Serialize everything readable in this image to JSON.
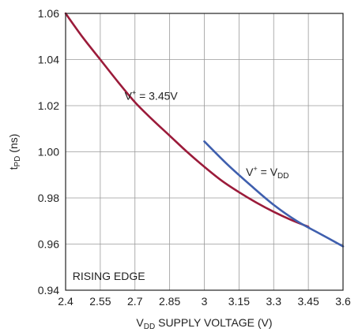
{
  "chart_data": {
    "type": "line",
    "xlabel": {
      "prefix": "V",
      "sub": "DD",
      "rest": " SUPPLY VOLTAGE (V)"
    },
    "ylabel": {
      "prefix": "t",
      "sub": "PD",
      "rest": " (ns)"
    },
    "xlim": [
      2.4,
      3.6
    ],
    "ylim": [
      0.94,
      1.06
    ],
    "xticks": [
      "2.4",
      "2.55",
      "2.7",
      "2.85",
      "3",
      "3.15",
      "3.3",
      "3.45",
      "3.6"
    ],
    "yticks": [
      "0.94",
      "0.96",
      "0.98",
      "1.00",
      "1.02",
      "1.04",
      "1.06"
    ],
    "grid": true,
    "series": [
      {
        "color": "#9b1b3a",
        "x": [
          2.4,
          2.475,
          2.55,
          2.625,
          2.7,
          2.775,
          2.85,
          2.925,
          3.0,
          3.075,
          3.15,
          3.225,
          3.3,
          3.375,
          3.45
        ],
        "y": [
          1.06,
          1.0495,
          1.04,
          1.0305,
          1.0215,
          1.014,
          1.007,
          1.0,
          0.9935,
          0.9875,
          0.9825,
          0.978,
          0.974,
          0.9705,
          0.9675
        ]
      },
      {
        "color": "#3f5fae",
        "x": [
          3.0,
          3.1,
          3.2,
          3.3,
          3.4,
          3.5,
          3.6
        ],
        "y": [
          1.0045,
          0.9945,
          0.9855,
          0.977,
          0.97,
          0.9645,
          0.959
        ]
      }
    ],
    "annotations": [
      {
        "id": "v345",
        "base": "V",
        "sup": "+",
        "rest": " = 3.45V",
        "x": 2.655,
        "y": 1.0225
      },
      {
        "id": "vdd",
        "base": "V",
        "sup": "+",
        "mid": " = V",
        "sub": "DD",
        "x": 3.18,
        "y": 0.9895
      },
      {
        "id": "edge",
        "text": "RISING EDGE",
        "x": 2.43,
        "y": 0.9445
      }
    ]
  }
}
